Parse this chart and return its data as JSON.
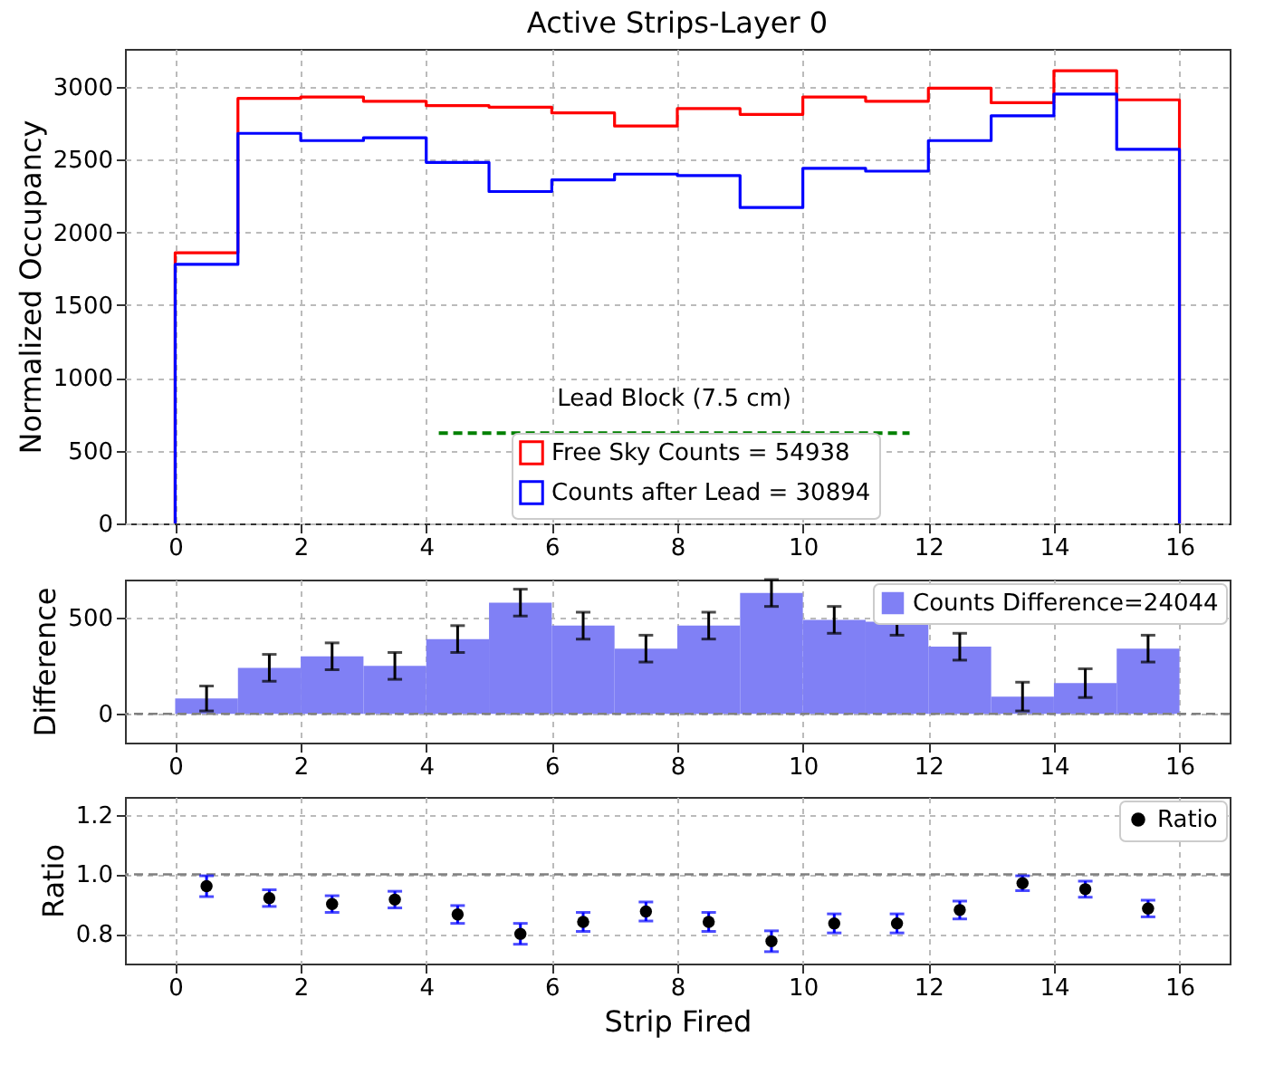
{
  "chart_data": [
    {
      "type": "histogram",
      "title": "Active Strips-Layer 0",
      "ylabel": "Normalized Occupancy",
      "bins": [
        0,
        1,
        2,
        3,
        4,
        5,
        6,
        7,
        8,
        9,
        10,
        11,
        12,
        13,
        14,
        15,
        16
      ],
      "series": [
        {
          "name": "Free Sky Counts = 54938",
          "color": "#ff0000",
          "values": [
            1860,
            2920,
            2930,
            2900,
            2870,
            2860,
            2820,
            2730,
            2850,
            2810,
            2930,
            2900,
            2990,
            2890,
            3110,
            2910
          ]
        },
        {
          "name": "Counts after Lead = 30894",
          "color": "#0000ff",
          "values": [
            1780,
            2680,
            2630,
            2650,
            2480,
            2280,
            2360,
            2400,
            2390,
            2170,
            2440,
            2420,
            2630,
            2800,
            2950,
            2570
          ]
        },
        {
          "type": "line",
          "color": "#008000",
          "line_style": "dashed",
          "x": [
            4.2,
            11.7
          ],
          "values": [
            620,
            620
          ]
        }
      ],
      "annotations": [
        "Lead Block (7.5 cm)"
      ],
      "xlim": [
        -0.8,
        16.8
      ],
      "xticks": [
        0,
        2,
        4,
        6,
        8,
        10,
        12,
        14,
        16
      ],
      "ylim": [
        0,
        3260
      ],
      "yticks": [
        0,
        500,
        1000,
        1500,
        2000,
        2500,
        3000
      ],
      "grid": true,
      "legend": "bottom"
    },
    {
      "type": "histogram",
      "ylabel": "Difference",
      "bins": [
        0,
        1,
        2,
        3,
        4,
        5,
        6,
        7,
        8,
        9,
        10,
        11,
        12,
        13,
        14,
        15,
        16
      ],
      "series": [
        {
          "name": "Counts Difference=24044",
          "color": "#8080f5",
          "values": [
            80,
            240,
            300,
            250,
            390,
            580,
            460,
            340,
            460,
            630,
            490,
            480,
            350,
            90,
            160,
            340
          ],
          "errors": [
            65,
            70,
            70,
            70,
            70,
            70,
            70,
            70,
            70,
            70,
            70,
            70,
            70,
            75,
            75,
            70
          ]
        }
      ],
      "ref_lines": [
        {
          "axis": "y",
          "value": 0,
          "color": "#808080",
          "line_style": "dashed"
        }
      ],
      "xlim": [
        -0.8,
        16.8
      ],
      "xticks": [
        0,
        2,
        4,
        6,
        8,
        10,
        12,
        14,
        16
      ],
      "ylim": [
        -150,
        700
      ],
      "yticks": [
        0,
        500
      ],
      "grid": true,
      "legend": "top right"
    },
    {
      "type": "scatter",
      "xlabel": "Strip Fired",
      "ylabel": "Ratio",
      "series": [
        {
          "name": "Ratio",
          "color": "#000000",
          "marker": "circle",
          "x": [
            0.5,
            1.5,
            2.5,
            3.5,
            4.5,
            5.5,
            6.5,
            7.5,
            8.5,
            9.5,
            10.5,
            11.5,
            12.5,
            13.5,
            14.5,
            15.5
          ],
          "values": [
            0.96,
            0.92,
            0.9,
            0.915,
            0.865,
            0.8,
            0.84,
            0.875,
            0.84,
            0.775,
            0.835,
            0.835,
            0.88,
            0.97,
            0.95,
            0.885
          ],
          "errors": [
            0.035,
            0.028,
            0.028,
            0.028,
            0.03,
            0.035,
            0.032,
            0.032,
            0.032,
            0.035,
            0.032,
            0.032,
            0.03,
            0.025,
            0.027,
            0.028
          ]
        }
      ],
      "ref_lines": [
        {
          "axis": "y",
          "value": 1.0,
          "color": "#808080",
          "line_style": "dashed"
        }
      ],
      "xlim": [
        -0.8,
        16.8
      ],
      "xticks": [
        0,
        2,
        4,
        6,
        8,
        10,
        12,
        14,
        16
      ],
      "ylim": [
        0.7,
        1.26
      ],
      "yticks": [
        {
          "value": 0.8,
          "label": "0.8"
        },
        {
          "value": 1.0,
          "label": "1.0"
        },
        {
          "value": 1.2,
          "label": "1.2"
        }
      ],
      "grid": true,
      "legend": "top right"
    }
  ]
}
